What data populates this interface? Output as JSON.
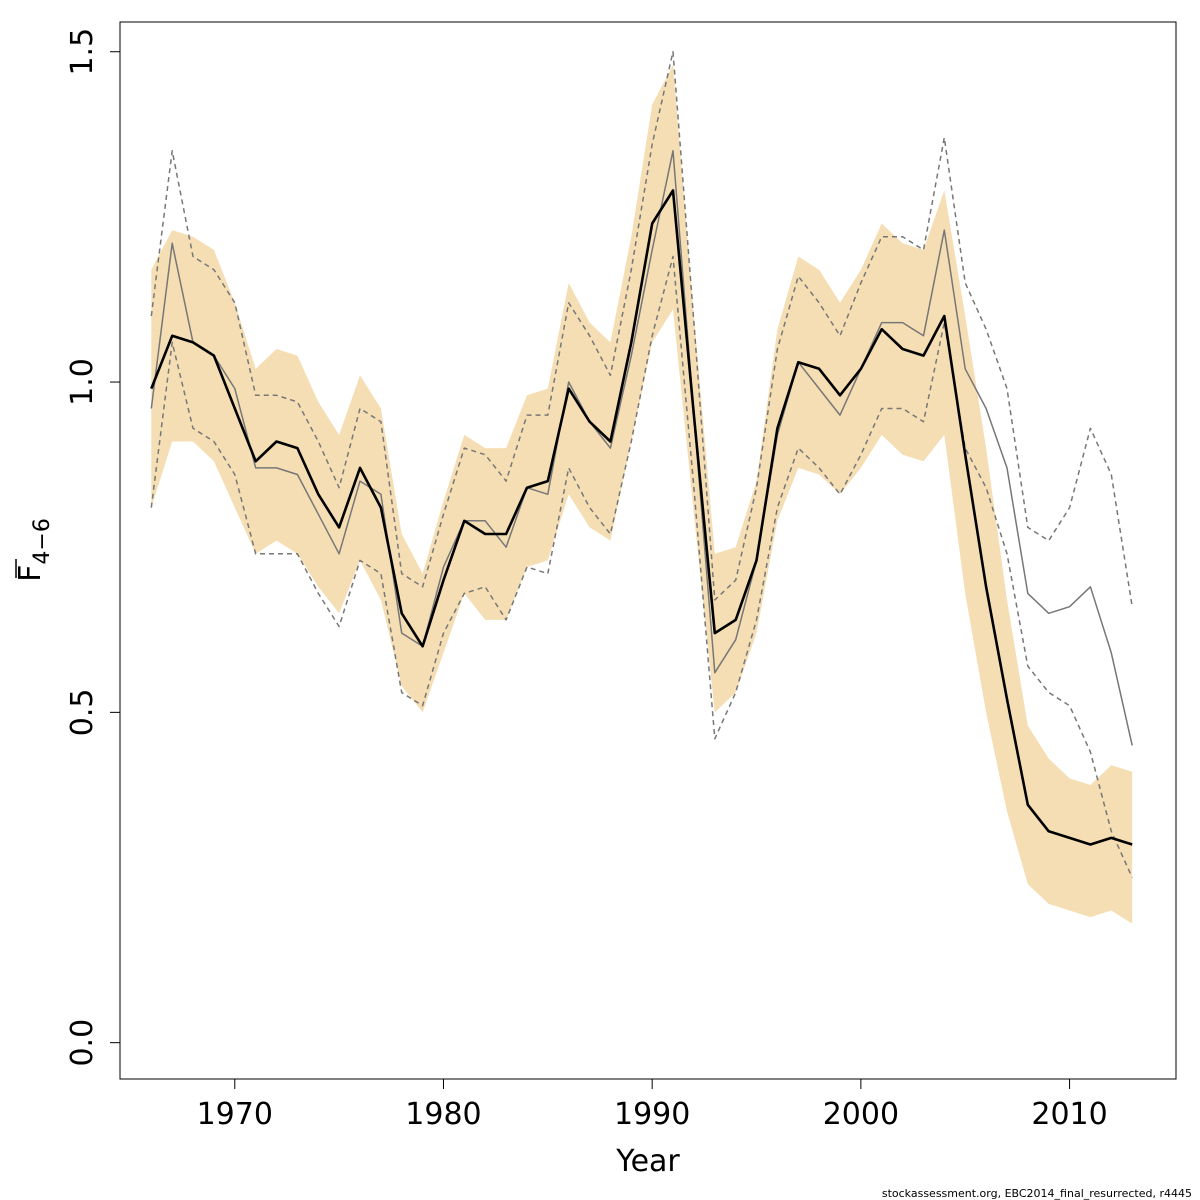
{
  "chart_data": {
    "type": "line",
    "xlabel": "Year",
    "ylabel": {
      "main": "F",
      "subscript": "4−6"
    },
    "xlim": [
      1964.5,
      2015.1
    ],
    "ylim": [
      -0.055,
      1.545
    ],
    "xticks": [
      1970,
      1980,
      1990,
      2000,
      2010
    ],
    "yticks": [
      0.0,
      0.5,
      1.0,
      1.5
    ],
    "ytick_labels": [
      "0.0",
      "0.5",
      "1.0",
      "1.5"
    ],
    "grid": false,
    "legend": "none",
    "x": [
      1966,
      1967,
      1968,
      1969,
      1970,
      1971,
      1972,
      1973,
      1974,
      1975,
      1976,
      1977,
      1978,
      1979,
      1980,
      1981,
      1982,
      1983,
      1984,
      1985,
      1986,
      1987,
      1988,
      1989,
      1990,
      1991,
      1992,
      1993,
      1994,
      1995,
      1996,
      1997,
      1998,
      1999,
      2000,
      2001,
      2002,
      2003,
      2004,
      2005,
      2006,
      2007,
      2008,
      2009,
      2010,
      2011,
      2012,
      2013
    ],
    "band": {
      "upper": [
        1.17,
        1.23,
        1.22,
        1.2,
        1.12,
        1.02,
        1.05,
        1.04,
        0.97,
        0.92,
        1.01,
        0.96,
        0.77,
        0.71,
        0.82,
        0.92,
        0.9,
        0.9,
        0.98,
        0.99,
        1.15,
        1.09,
        1.06,
        1.22,
        1.42,
        1.48,
        1.1,
        0.74,
        0.75,
        0.85,
        1.08,
        1.19,
        1.17,
        1.12,
        1.17,
        1.24,
        1.21,
        1.2,
        1.29,
        1.1,
        0.9,
        0.67,
        0.48,
        0.43,
        0.4,
        0.39,
        0.42,
        0.41
      ],
      "lower": [
        0.81,
        0.91,
        0.91,
        0.88,
        0.81,
        0.74,
        0.76,
        0.74,
        0.69,
        0.65,
        0.73,
        0.67,
        0.54,
        0.5,
        0.59,
        0.68,
        0.64,
        0.64,
        0.72,
        0.73,
        0.83,
        0.78,
        0.76,
        0.91,
        1.06,
        1.11,
        0.8,
        0.5,
        0.53,
        0.62,
        0.79,
        0.87,
        0.86,
        0.83,
        0.87,
        0.92,
        0.89,
        0.88,
        0.92,
        0.68,
        0.5,
        0.35,
        0.24,
        0.21,
        0.2,
        0.19,
        0.2,
        0.18
      ],
      "color": "#f5deb3"
    },
    "series": [
      {
        "style": "thick",
        "color": "#000000",
        "values": [
          0.99,
          1.07,
          1.06,
          1.04,
          0.96,
          0.88,
          0.91,
          0.9,
          0.83,
          0.78,
          0.87,
          0.81,
          0.65,
          0.6,
          0.7,
          0.79,
          0.77,
          0.77,
          0.84,
          0.85,
          0.99,
          0.94,
          0.91,
          1.06,
          1.24,
          1.29,
          0.95,
          0.62,
          0.64,
          0.73,
          0.93,
          1.03,
          1.02,
          0.98,
          1.02,
          1.08,
          1.05,
          1.04,
          1.1,
          0.89,
          0.69,
          0.52,
          0.36,
          0.32,
          0.31,
          0.3,
          0.31,
          0.3
        ]
      },
      {
        "style": "thin",
        "color": "#777777",
        "values": [
          0.96,
          1.21,
          1.06,
          1.04,
          0.99,
          0.87,
          0.87,
          0.86,
          0.8,
          0.74,
          0.85,
          0.83,
          0.62,
          0.6,
          0.72,
          0.79,
          0.79,
          0.75,
          0.84,
          0.83,
          1.0,
          0.94,
          0.9,
          1.04,
          1.2,
          1.35,
          0.95,
          0.56,
          0.61,
          0.73,
          0.92,
          1.03,
          0.99,
          0.95,
          1.02,
          1.09,
          1.09,
          1.07,
          1.23,
          1.02,
          0.96,
          0.87,
          0.68,
          0.65,
          0.66,
          0.69,
          0.59,
          0.45
        ]
      },
      {
        "style": "dashed",
        "color": "#777777",
        "values": [
          1.1,
          1.35,
          1.19,
          1.17,
          1.12,
          0.98,
          0.98,
          0.97,
          0.91,
          0.84,
          0.96,
          0.94,
          0.71,
          0.69,
          0.8,
          0.9,
          0.89,
          0.85,
          0.95,
          0.95,
          1.12,
          1.07,
          1.01,
          1.17,
          1.36,
          1.5,
          1.09,
          0.67,
          0.7,
          0.84,
          1.05,
          1.16,
          1.12,
          1.07,
          1.15,
          1.22,
          1.22,
          1.2,
          1.37,
          1.15,
          1.08,
          0.99,
          0.78,
          0.76,
          0.81,
          0.93,
          0.86,
          0.66
        ]
      },
      {
        "style": "dashed",
        "color": "#777777",
        "values": [
          0.81,
          1.06,
          0.93,
          0.91,
          0.86,
          0.74,
          0.74,
          0.74,
          0.68,
          0.63,
          0.73,
          0.71,
          0.53,
          0.51,
          0.62,
          0.68,
          0.69,
          0.64,
          0.72,
          0.71,
          0.87,
          0.81,
          0.77,
          0.91,
          1.07,
          1.19,
          0.84,
          0.46,
          0.53,
          0.64,
          0.81,
          0.9,
          0.87,
          0.83,
          0.89,
          0.96,
          0.96,
          0.94,
          1.09,
          0.9,
          0.84,
          0.74,
          0.57,
          0.53,
          0.51,
          0.44,
          0.32,
          0.25
        ]
      }
    ]
  },
  "footer": "stockassessment.org, EBC2014_final_resurrected, r4445"
}
